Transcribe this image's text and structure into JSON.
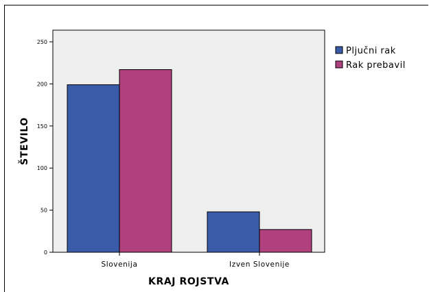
{
  "chart_data": {
    "type": "bar",
    "categories": [
      "Slovenija",
      "Izven Slovenije"
    ],
    "series": [
      {
        "name": "Pljučni rak",
        "values": [
          199,
          48
        ],
        "color": "#3a5ba8"
      },
      {
        "name": "Rak prebavil",
        "values": [
          217,
          27
        ],
        "color": "#b0407e"
      }
    ],
    "title": "",
    "xlabel": "KRAJ ROJSTVA",
    "ylabel": "ŠTEVILO",
    "ylim": [
      0,
      250
    ],
    "yticks": [
      0,
      50,
      100,
      150,
      200,
      250
    ],
    "grid": false,
    "legend_position": "right",
    "plot_background": "#eeeeee"
  }
}
